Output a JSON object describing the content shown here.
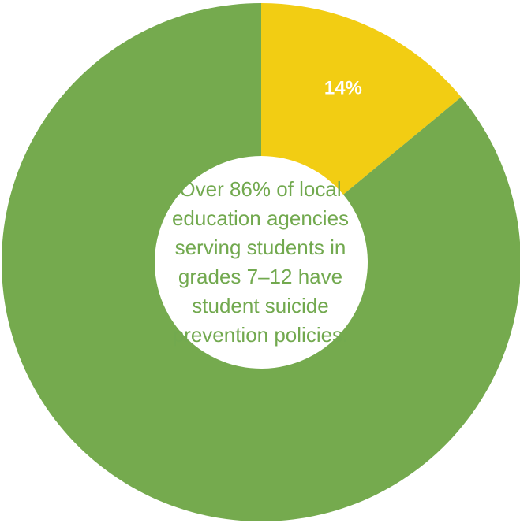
{
  "chart_data": {
    "type": "pie",
    "style": "donut",
    "slices": [
      {
        "value": 14,
        "label": "14%",
        "color": "#f2cd13"
      },
      {
        "value": 86,
        "label": "",
        "color": "#75aa4e"
      }
    ],
    "center_text": [
      "Over 86% of local",
      "education agencies",
      "serving students in",
      "grades 7–12 have",
      "student suicide",
      "prevention policies."
    ],
    "colors": {
      "center_text": "#72a94f",
      "slice_label": "#ffffff",
      "background": "#ffffff"
    }
  }
}
